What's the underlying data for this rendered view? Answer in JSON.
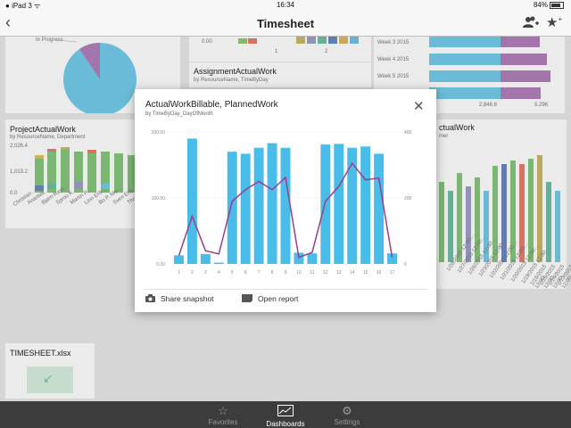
{
  "status_bar": {
    "carrier": "iPad",
    "signal": "3",
    "time": "16:34",
    "battery": "84%"
  },
  "nav": {
    "title": "Timesheet",
    "back_icon": "chevron-left-icon",
    "add_user_icon": "add-user-icon",
    "add_favorite_icon": "add-favorite-icon"
  },
  "background": {
    "pie_label": "In Progress",
    "project_tile": {
      "title": "ProjectActualWork",
      "subtitle": "by ResourceName, Department",
      "y_ticks": [
        "2,026.4",
        "1,013.2",
        "0.0"
      ],
      "x_labels": [
        "Christian...",
        "Anastas...",
        "Bjørn Rask...",
        "Sprou K...",
        "Martin P...",
        "Linn Erik...",
        "Bo P. Nie...",
        "Sven Erik...",
        "Tho..."
      ]
    },
    "assignment_tile": {
      "title": "AssignmentActualWork",
      "subtitle": "by ResourceName, TimeByDay",
      "tick_zero": "0.00",
      "tick_one": "1",
      "tick_two": "2"
    },
    "weeks_tile": {
      "weeks": [
        "Week 3 2015",
        "Week 4 2015",
        "Week 5 2015"
      ],
      "x_ticks": [
        "2,846.6",
        "5.29K"
      ]
    },
    "right_tile": {
      "title_fragment": "ctualWork",
      "subtitle_fragment": "mer",
      "x_labels": [
        "1/28/2015 12:00:...",
        "1/27/2015 12:00:...",
        "1/26/2015 12:00:...",
        "1/23/2015 12:00:...",
        "1/22/2015 12:00:...",
        "1/21/2015 12:00:...",
        "1/20/2015 12:00:...",
        "1/19/2015 12:00:...",
        "1/16/2015 12:00:...",
        "1/15/2015 12:00:...",
        "1/14/2015 12:00:...",
        "1/13/2015 12:00:..."
      ]
    },
    "file_tile": {
      "title": "TIMESHEET.xlsx",
      "icon": "download-arrow-icon"
    }
  },
  "modal": {
    "title": "ActualWorkBillable, PlannedWork",
    "subtitle": "by TimeByDay_DayOfMonth",
    "close_icon": "close-icon",
    "share_label": "Share snapshot",
    "share_icon": "camera-icon",
    "open_label": "Open report",
    "open_icon": "report-icon"
  },
  "tabs": [
    {
      "label": "Favorites",
      "icon": "star-icon",
      "active": false
    },
    {
      "label": "Dashboards",
      "icon": "dashboards-icon",
      "active": true
    },
    {
      "label": "Settings",
      "icon": "gear-icon",
      "active": false
    }
  ],
  "chart_data": {
    "type": "bar",
    "title": "ActualWorkBillable, PlannedWork",
    "subtitle": "by TimeByDay_DayOfMonth",
    "categories": [
      "1",
      "2",
      "3",
      "4",
      "5",
      "6",
      "7",
      "8",
      "9",
      "10",
      "11",
      "12",
      "13",
      "14",
      "15",
      "16",
      "17"
    ],
    "left_axis": {
      "ylim": [
        0,
        200
      ],
      "ticks": [
        "0.00",
        "100.00",
        "200.00"
      ]
    },
    "right_axis": {
      "ylim": [
        0,
        400
      ],
      "ticks": [
        "0",
        "200",
        "400"
      ]
    },
    "series": [
      {
        "type": "bar",
        "color": "#49bde9",
        "values": [
          13,
          190,
          15,
          2,
          170,
          167,
          176,
          183,
          176,
          17,
          16,
          181,
          182,
          176,
          178,
          167,
          16
        ]
      },
      {
        "type": "line",
        "color": "#9b3d8c",
        "axis": "right",
        "values": [
          25,
          145,
          40,
          30,
          190,
          225,
          250,
          225,
          262,
          20,
          35,
          190,
          235,
          305,
          255,
          260,
          20
        ]
      }
    ],
    "grid": true
  }
}
